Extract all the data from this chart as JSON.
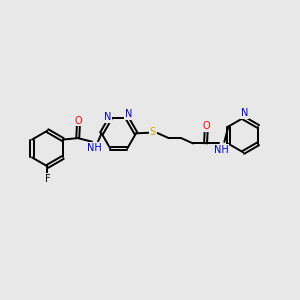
{
  "bg_color": "#e8e8e8",
  "bond_color": "#000000",
  "atom_colors": {
    "F": "#000000",
    "O": "#ff0000",
    "N": "#0000cc",
    "S": "#ccaa00",
    "H": "#000000",
    "C": "#000000"
  },
  "font_size": 7.0,
  "linewidth": 1.4,
  "xlim": [
    0,
    10
  ],
  "ylim": [
    2,
    8
  ]
}
